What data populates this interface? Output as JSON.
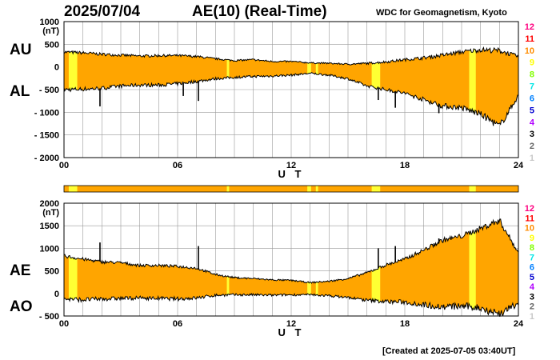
{
  "header": {
    "date": "2025/07/04",
    "title": "AE(10) (Real-Time)",
    "source": "WDC for Geomagnetism, Kyoto"
  },
  "footer": {
    "created": "[Created at 2025-07-05 03:40UT]"
  },
  "panel_labels": {
    "top_upper": "AU",
    "top_lower": "AL",
    "bottom_upper": "AE",
    "bottom_lower": "AO"
  },
  "level_legend": [
    {
      "label": "12",
      "color": "#ff0080"
    },
    {
      "label": "11",
      "color": "#ff0000"
    },
    {
      "label": "10",
      "color": "#ff8c00"
    },
    {
      "label": "9",
      "color": "#ffff00"
    },
    {
      "label": "8",
      "color": "#80ff00"
    },
    {
      "label": "7",
      "color": "#00e5e5"
    },
    {
      "label": "6",
      "color": "#0080ff"
    },
    {
      "label": "5",
      "color": "#0000d0"
    },
    {
      "label": "4",
      "color": "#b000ff"
    },
    {
      "label": "3",
      "color": "#000000"
    },
    {
      "label": "2",
      "color": "#666666"
    },
    {
      "label": "1",
      "color": "#c8c8c8"
    }
  ],
  "colors": {
    "fill": "#ffa500",
    "highlight": "#ffff33",
    "grid": "#999999",
    "line": "#000000"
  },
  "chart_data": [
    {
      "type": "area",
      "ylabel": "(nT)",
      "ylim": [
        -2000,
        1000
      ],
      "yticks": [
        1000,
        500,
        0,
        -500,
        -1000,
        -1500,
        -2000
      ],
      "ytick_labels": [
        "1000",
        "500",
        "0",
        "- 500",
        "- 1000",
        "- 1500",
        "- 2000"
      ],
      "xlim": [
        0,
        24
      ],
      "xticks": [
        0,
        6,
        12,
        18,
        24
      ],
      "xtick_labels": [
        "00",
        "06",
        "12",
        "18",
        "24"
      ],
      "xlabel": "U T",
      "hours": [
        0,
        1,
        2,
        3,
        4,
        5,
        6,
        7,
        8,
        9,
        10,
        11,
        12,
        13,
        14,
        15,
        16,
        17,
        18,
        19,
        20,
        21,
        22,
        23,
        24
      ],
      "series": [
        {
          "name": "AU",
          "values": [
            330,
            310,
            280,
            260,
            240,
            250,
            250,
            230,
            180,
            140,
            160,
            120,
            120,
            90,
            80,
            60,
            80,
            110,
            160,
            200,
            260,
            330,
            380,
            360,
            230
          ]
        },
        {
          "name": "AL",
          "values": [
            -500,
            -490,
            -470,
            -420,
            -400,
            -400,
            -370,
            -320,
            -260,
            -230,
            -210,
            -200,
            -180,
            -140,
            -180,
            -260,
            -420,
            -500,
            -580,
            -720,
            -860,
            -900,
            -1040,
            -1310,
            -630
          ]
        }
      ],
      "spikes_AL": [
        [
          1.9,
          -870
        ],
        [
          6.3,
          -640
        ],
        [
          7.1,
          -750
        ],
        [
          16.6,
          -730
        ],
        [
          17.5,
          -900
        ],
        [
          19.8,
          -1020
        ]
      ],
      "highlight_bands_hours": [
        [
          0.25,
          0.7
        ],
        [
          8.6,
          8.72
        ],
        [
          12.85,
          13.05
        ],
        [
          13.3,
          13.42
        ],
        [
          16.25,
          16.7
        ],
        [
          21.4,
          21.75
        ]
      ]
    },
    {
      "type": "area",
      "ylabel": "(nT)",
      "ylim": [
        -500,
        2000
      ],
      "yticks": [
        2000,
        1500,
        1000,
        500,
        0,
        -500
      ],
      "ytick_labels": [
        "2000",
        "1500",
        "1000",
        "500",
        "0",
        "- 500"
      ],
      "xlim": [
        0,
        24
      ],
      "xticks": [
        0,
        6,
        12,
        18,
        24
      ],
      "xtick_labels": [
        "00",
        "06",
        "12",
        "18",
        "24"
      ],
      "xlabel": "U T",
      "hours": [
        0,
        1,
        2,
        3,
        4,
        5,
        6,
        7,
        8,
        9,
        10,
        11,
        12,
        13,
        14,
        15,
        16,
        17,
        18,
        19,
        20,
        21,
        22,
        23,
        24
      ],
      "series": [
        {
          "name": "AE",
          "values": [
            830,
            760,
            700,
            680,
            620,
            620,
            600,
            560,
            420,
            350,
            330,
            300,
            290,
            240,
            270,
            330,
            460,
            630,
            760,
            960,
            1180,
            1270,
            1440,
            1620,
            900
          ]
        },
        {
          "name": "AO",
          "values": [
            -120,
            -140,
            -120,
            -110,
            -100,
            -110,
            -120,
            -100,
            -40,
            -30,
            -30,
            -40,
            -30,
            -30,
            -50,
            -90,
            -150,
            -180,
            -190,
            -250,
            -300,
            -280,
            -320,
            -450,
            -220
          ]
        }
      ],
      "spikes_AE": [
        [
          1.9,
          1130
        ],
        [
          7.1,
          1050
        ],
        [
          16.6,
          1000
        ],
        [
          17.5,
          1050
        ],
        [
          19.8,
          1220
        ]
      ],
      "highlight_bands_hours": [
        [
          0.25,
          0.7
        ],
        [
          8.6,
          8.72
        ],
        [
          12.85,
          13.05
        ],
        [
          13.3,
          13.42
        ],
        [
          16.25,
          16.7
        ],
        [
          21.4,
          21.75
        ]
      ]
    }
  ]
}
